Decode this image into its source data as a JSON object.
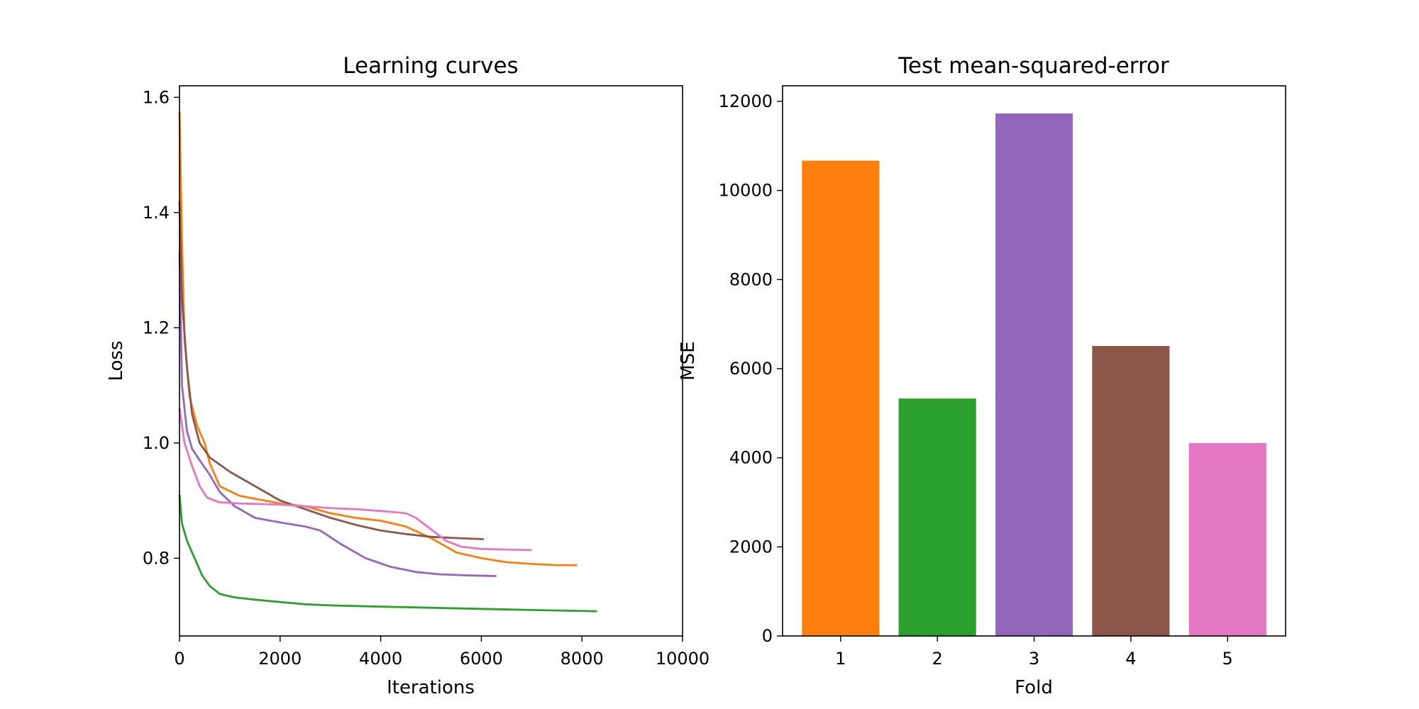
{
  "chart_data": [
    {
      "type": "line",
      "title": "Learning curves",
      "xlabel": "Iterations",
      "ylabel": "Loss",
      "xlim": [
        0,
        10000
      ],
      "ylim": [
        0.665,
        1.62
      ],
      "xticks": [
        0,
        2000,
        4000,
        6000,
        8000,
        10000
      ],
      "yticks": [
        0.8,
        1.0,
        1.2,
        1.4,
        1.6
      ],
      "grid": false,
      "legend": "none",
      "series": [
        {
          "color": "#ff7f0e",
          "points": [
            [
              0,
              1.575
            ],
            [
              50,
              1.35
            ],
            [
              100,
              1.18
            ],
            [
              200,
              1.08
            ],
            [
              350,
              1.03
            ],
            [
              500,
              1.0
            ],
            [
              600,
              0.965
            ],
            [
              800,
              0.925
            ],
            [
              1200,
              0.908
            ],
            [
              2000,
              0.895
            ],
            [
              2500,
              0.89
            ],
            [
              3000,
              0.878
            ],
            [
              3500,
              0.87
            ],
            [
              4000,
              0.865
            ],
            [
              4500,
              0.855
            ],
            [
              5000,
              0.835
            ],
            [
              5500,
              0.81
            ],
            [
              6000,
              0.8
            ],
            [
              6500,
              0.793
            ],
            [
              7000,
              0.79
            ],
            [
              7500,
              0.788
            ],
            [
              7900,
              0.788
            ]
          ]
        },
        {
          "color": "#2ca02c",
          "points": [
            [
              0,
              0.91
            ],
            [
              50,
              0.86
            ],
            [
              150,
              0.83
            ],
            [
              300,
              0.8
            ],
            [
              450,
              0.77
            ],
            [
              600,
              0.752
            ],
            [
              800,
              0.738
            ],
            [
              1100,
              0.732
            ],
            [
              1500,
              0.728
            ],
            [
              2000,
              0.724
            ],
            [
              2500,
              0.72
            ],
            [
              3000,
              0.718
            ],
            [
              4000,
              0.716
            ],
            [
              5000,
              0.714
            ],
            [
              6000,
              0.712
            ],
            [
              7000,
              0.71
            ],
            [
              8300,
              0.708
            ]
          ]
        },
        {
          "color": "#9467bd",
          "points": [
            [
              0,
              1.33
            ],
            [
              50,
              1.1
            ],
            [
              150,
              1.02
            ],
            [
              250,
              0.99
            ],
            [
              400,
              0.97
            ],
            [
              600,
              0.945
            ],
            [
              800,
              0.915
            ],
            [
              1100,
              0.89
            ],
            [
              1500,
              0.87
            ],
            [
              2000,
              0.862
            ],
            [
              2500,
              0.855
            ],
            [
              2800,
              0.848
            ],
            [
              3200,
              0.825
            ],
            [
              3700,
              0.8
            ],
            [
              4200,
              0.785
            ],
            [
              4700,
              0.776
            ],
            [
              5200,
              0.772
            ],
            [
              5800,
              0.77
            ],
            [
              6300,
              0.769
            ]
          ]
        },
        {
          "color": "#8c564b",
          "points": [
            [
              0,
              1.42
            ],
            [
              50,
              1.25
            ],
            [
              150,
              1.13
            ],
            [
              250,
              1.05
            ],
            [
              400,
              1.0
            ],
            [
              600,
              0.975
            ],
            [
              1000,
              0.95
            ],
            [
              1500,
              0.925
            ],
            [
              2000,
              0.9
            ],
            [
              2500,
              0.885
            ],
            [
              3000,
              0.87
            ],
            [
              3500,
              0.858
            ],
            [
              4000,
              0.848
            ],
            [
              4500,
              0.842
            ],
            [
              5000,
              0.837
            ],
            [
              5500,
              0.835
            ],
            [
              6050,
              0.833
            ]
          ]
        },
        {
          "color": "#e377c2",
          "points": [
            [
              0,
              1.06
            ],
            [
              100,
              1.0
            ],
            [
              250,
              0.96
            ],
            [
              400,
              0.925
            ],
            [
              550,
              0.905
            ],
            [
              800,
              0.897
            ],
            [
              1200,
              0.895
            ],
            [
              2000,
              0.893
            ],
            [
              3000,
              0.887
            ],
            [
              3500,
              0.885
            ],
            [
              4000,
              0.882
            ],
            [
              4500,
              0.878
            ],
            [
              4700,
              0.87
            ],
            [
              5000,
              0.85
            ],
            [
              5300,
              0.83
            ],
            [
              5600,
              0.82
            ],
            [
              6000,
              0.816
            ],
            [
              6500,
              0.815
            ],
            [
              7000,
              0.814
            ]
          ]
        }
      ]
    },
    {
      "type": "bar",
      "title": "Test mean-squared-error",
      "xlabel": "Fold",
      "ylabel": "MSE",
      "categories": [
        "1",
        "2",
        "3",
        "4",
        "5"
      ],
      "values": [
        10670,
        5330,
        11730,
        6510,
        4330
      ],
      "colors": [
        "#ff7f0e",
        "#2ca02c",
        "#9467bd",
        "#8c564b",
        "#e377c2"
      ],
      "ylim": [
        0,
        12350
      ],
      "yticks": [
        0,
        2000,
        4000,
        6000,
        8000,
        10000,
        12000
      ],
      "grid": false,
      "legend": "none"
    }
  ]
}
